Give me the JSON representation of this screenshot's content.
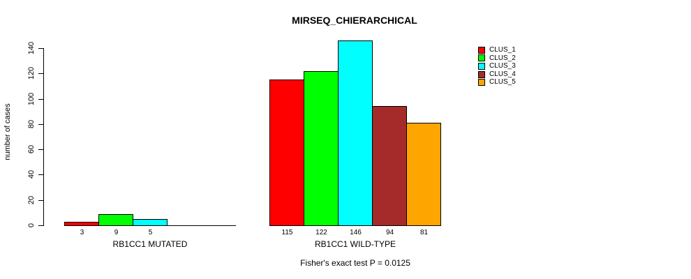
{
  "title": "MIRSEQ_CHIERARCHICAL",
  "chart_data": {
    "type": "bar",
    "title": "MIRSEQ_CHIERARCHICAL",
    "xlabel": "",
    "ylabel": "number of cases",
    "ylim": [
      0,
      140
    ],
    "yticks": [
      0,
      20,
      40,
      60,
      80,
      100,
      120,
      140
    ],
    "grid": false,
    "series_colors": [
      "#FF0000",
      "#00FF00",
      "#00FFFF",
      "#A52A2A",
      "#FFA500"
    ],
    "legend": {
      "position": "top-right",
      "entries": [
        {
          "label": "CLUS_1",
          "color": "#FF0000"
        },
        {
          "label": "CLUS_2",
          "color": "#00FF00"
        },
        {
          "label": "CLUS_3",
          "color": "#00FFFF"
        },
        {
          "label": "CLUS_4",
          "color": "#A52A2A"
        },
        {
          "label": "CLUS_5",
          "color": "#FFA500"
        }
      ]
    },
    "groups": [
      {
        "label": "RB1CC1 MUTATED",
        "values": [
          3,
          9,
          5,
          0,
          0
        ],
        "value_labels": [
          "3",
          "9",
          "5",
          "",
          ""
        ]
      },
      {
        "label": "RB1CC1 WILD-TYPE",
        "values": [
          115,
          122,
          146,
          94,
          81
        ],
        "value_labels": [
          "115",
          "122",
          "146",
          "94",
          "81"
        ]
      }
    ],
    "annotation": "Fisher's exact test P = 0.0125"
  }
}
